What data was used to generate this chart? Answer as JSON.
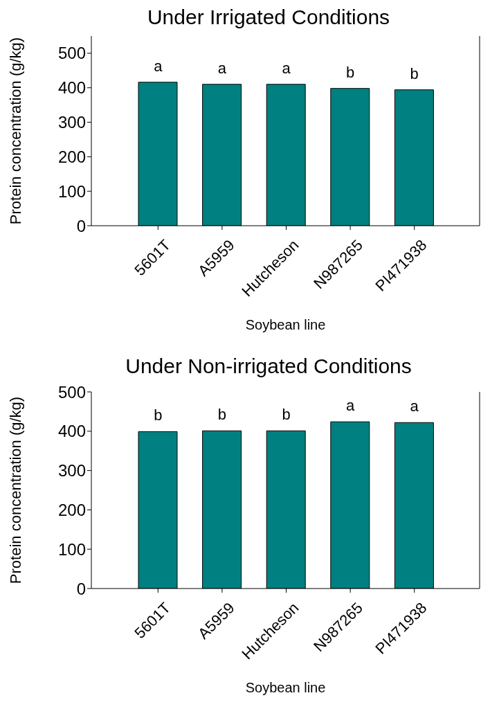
{
  "chart_data": [
    {
      "type": "bar",
      "title": "Under Irrigated Conditions",
      "xlabel": "Soybean line",
      "ylabel": "Protein concentration (g/kg)",
      "categories": [
        "5601T",
        "A5959",
        "Hutcheson",
        "N987265",
        "PI471938"
      ],
      "values": [
        416,
        410,
        410,
        398,
        394
      ],
      "color": "#008080",
      "ylim": [
        0,
        550
      ],
      "yticks": [
        0,
        100,
        200,
        300,
        400,
        500
      ],
      "grid": false,
      "legend": false,
      "annotations": [
        {
          "text": "a",
          "x": "5601T",
          "y": 416
        },
        {
          "text": "a",
          "x": "A5959",
          "y": 410
        },
        {
          "text": "a",
          "x": "Hutcheson",
          "y": 410
        },
        {
          "text": "b",
          "x": "N987265",
          "y": 398
        },
        {
          "text": "b",
          "x": "PI471938",
          "y": 394
        }
      ]
    },
    {
      "type": "bar",
      "title": "Under Non-irrigated Conditions",
      "xlabel": "Soybean line",
      "ylabel": "Protein concentration (g/kg)",
      "categories": [
        "5601T",
        "A5959",
        "Hutcheson",
        "N987265",
        "PI471938"
      ],
      "values": [
        399,
        401,
        401,
        424,
        422
      ],
      "color": "#008080",
      "ylim": [
        0,
        500
      ],
      "yticks": [
        0,
        100,
        200,
        300,
        400,
        500
      ],
      "grid": false,
      "legend": false,
      "annotations": [
        {
          "text": "b",
          "x": "5601T",
          "y": 399
        },
        {
          "text": "b",
          "x": "A5959",
          "y": 401
        },
        {
          "text": "b",
          "x": "Hutcheson",
          "y": 401
        },
        {
          "text": "a",
          "x": "N987265",
          "y": 424
        },
        {
          "text": "a",
          "x": "PI471938",
          "y": 422
        }
      ]
    }
  ]
}
